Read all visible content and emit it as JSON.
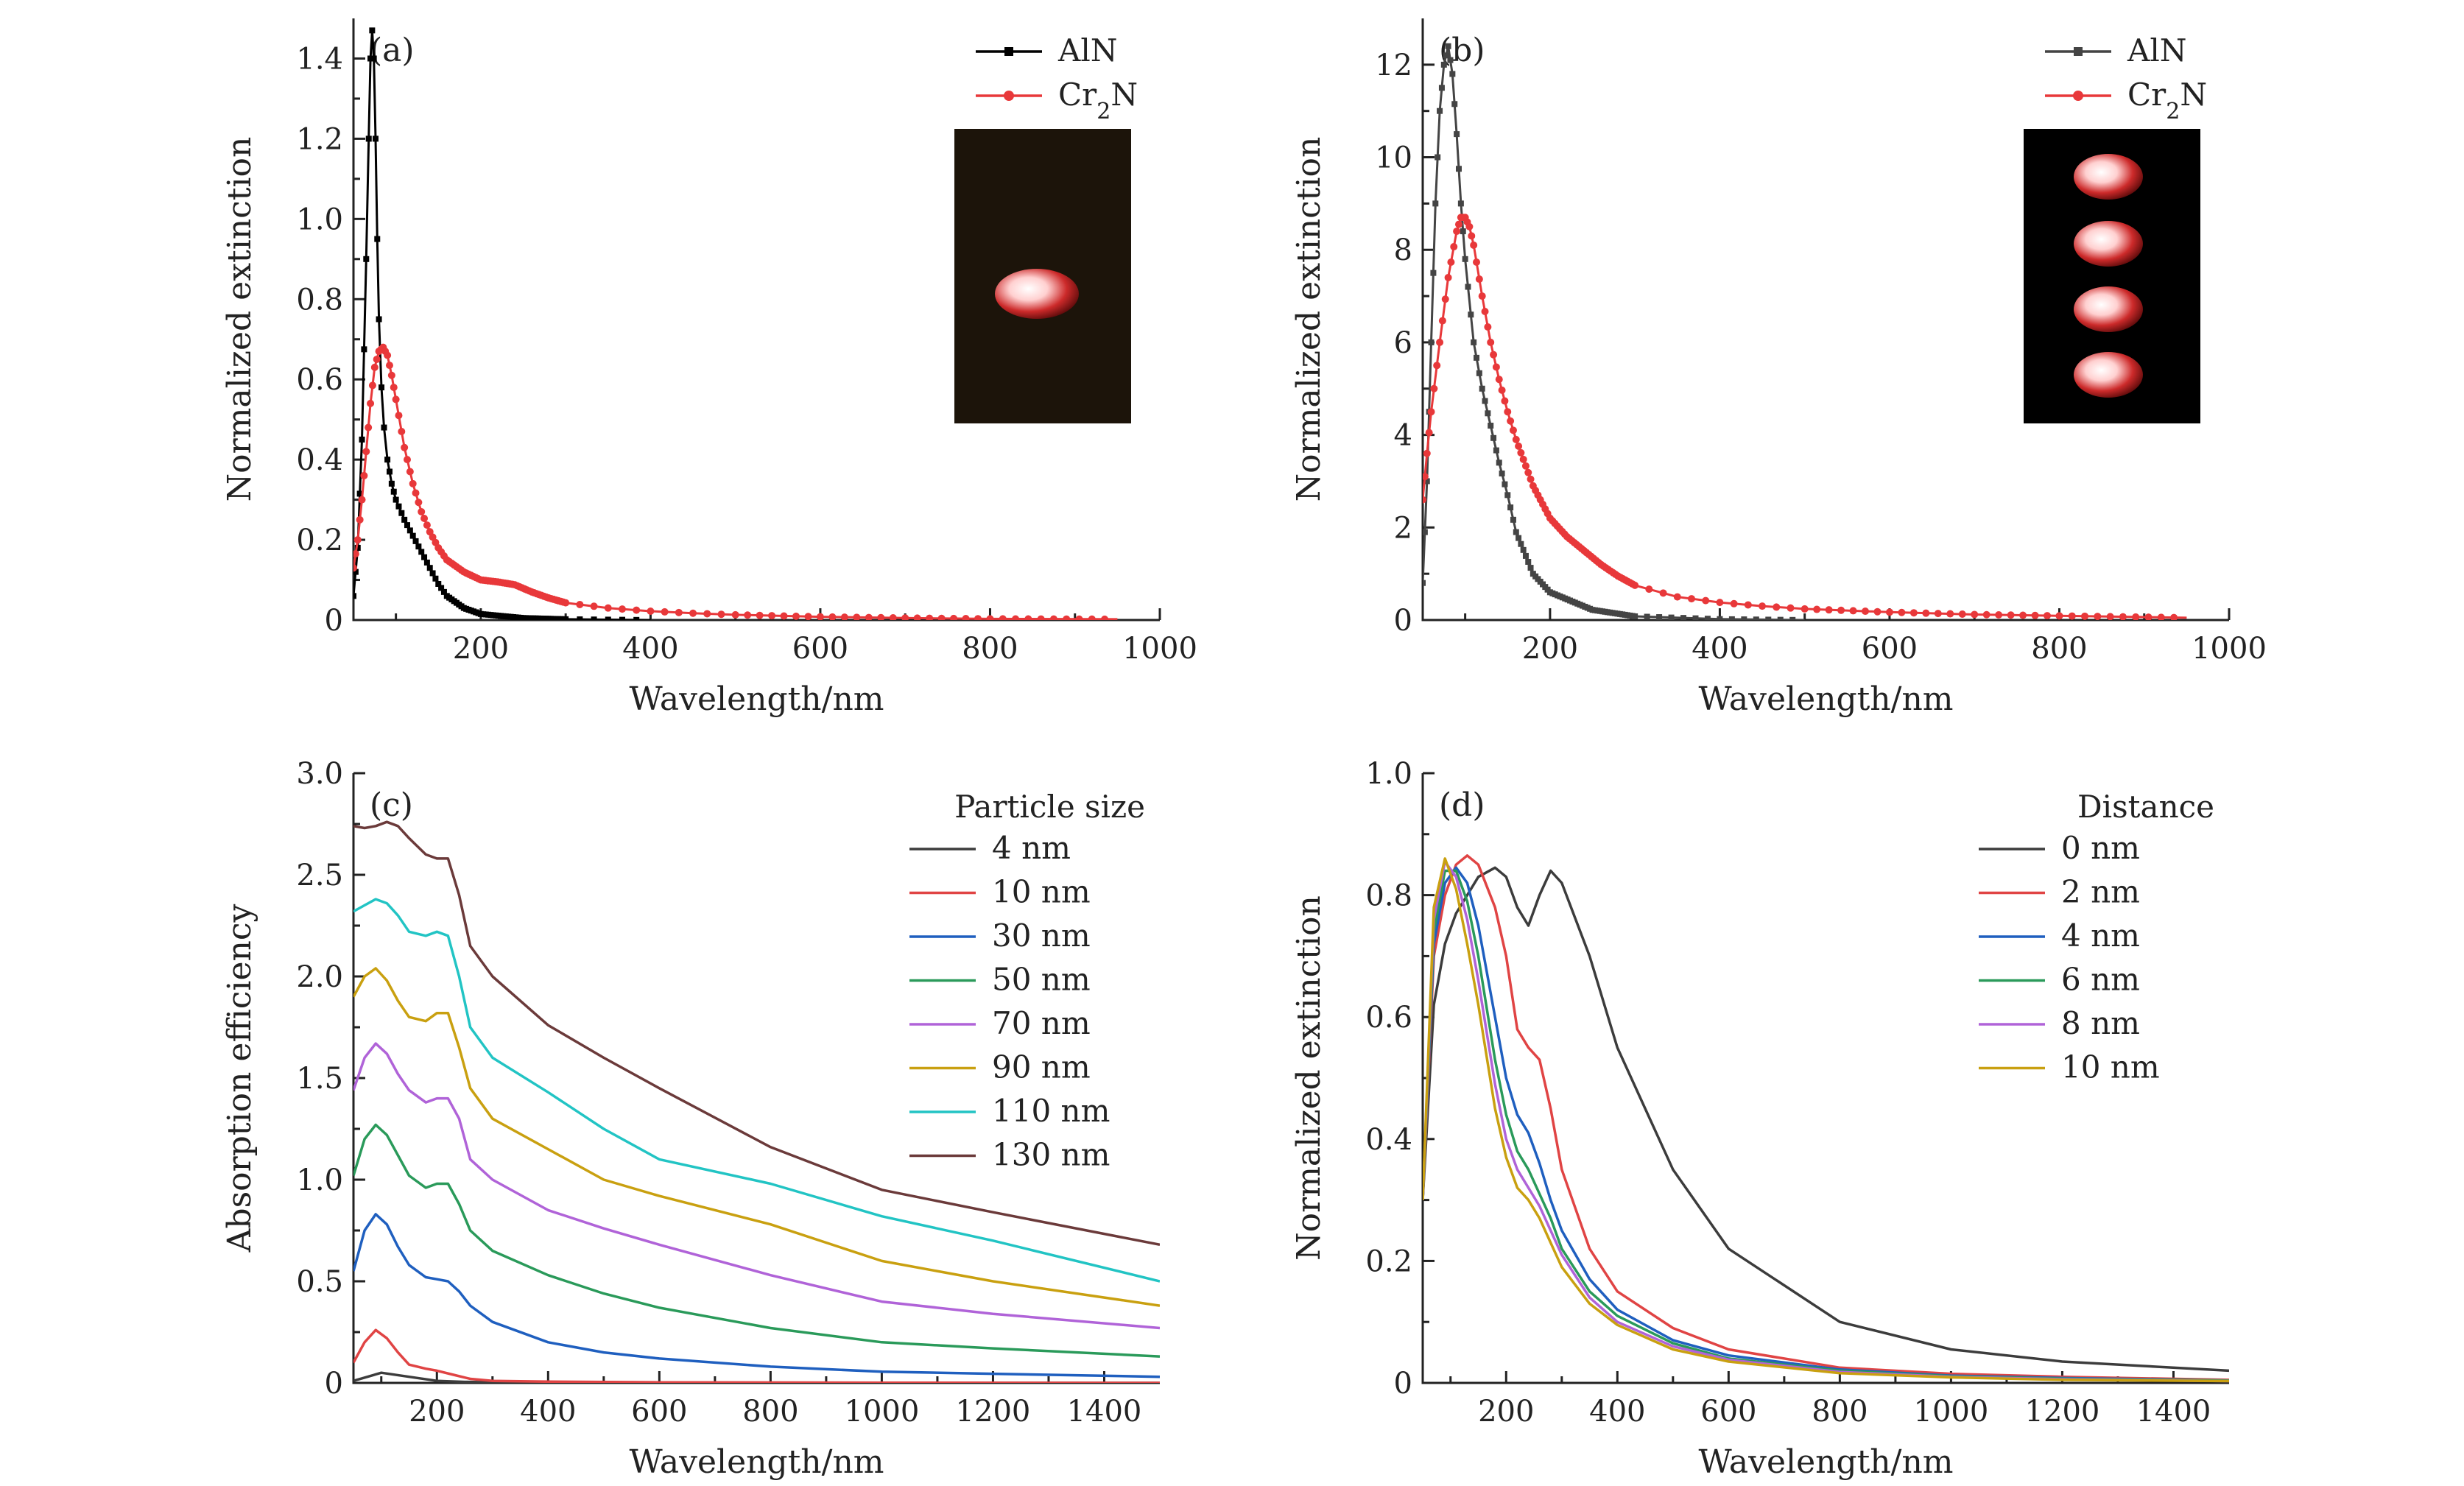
{
  "chart_data": [
    {
      "panel_label": "(a)",
      "type": "line",
      "xlabel": "Wavelength/nm",
      "ylabel": "Normalized extinction",
      "xlim": [
        50,
        1000
      ],
      "ylim": [
        0,
        1.5
      ],
      "xticks": [
        200,
        400,
        600,
        800,
        1000
      ],
      "yticks": [
        0,
        0.2,
        0.4,
        0.6,
        0.8,
        1.0,
        1.2,
        1.4
      ],
      "ytick_labels": [
        "0",
        "0.2",
        "0.4",
        "0.6",
        "0.8",
        "1.0",
        "1.2",
        "1.4"
      ],
      "legend_position": "top-right",
      "inset": "single bright particle",
      "series": [
        {
          "name": "AlN",
          "color": "#000000",
          "marker": "square",
          "x": [
            50,
            55,
            60,
            65,
            68,
            70,
            72,
            74,
            76,
            78,
            80,
            83,
            86,
            90,
            95,
            100,
            110,
            120,
            130,
            140,
            150,
            160,
            180,
            200,
            250,
            300,
            350,
            400
          ],
          "y": [
            0.06,
            0.18,
            0.45,
            0.9,
            1.2,
            1.4,
            1.47,
            1.4,
            1.2,
            0.95,
            0.75,
            0.58,
            0.48,
            0.4,
            0.34,
            0.3,
            0.25,
            0.21,
            0.17,
            0.13,
            0.09,
            0.06,
            0.03,
            0.015,
            0.005,
            0.002,
            0.001,
            0.0
          ]
        },
        {
          "name": "Cr₂N",
          "color": "#e8383a",
          "marker": "circle",
          "x": [
            50,
            55,
            60,
            65,
            70,
            75,
            80,
            85,
            90,
            95,
            100,
            110,
            120,
            130,
            140,
            150,
            160,
            180,
            200,
            220,
            240,
            260,
            280,
            300,
            350,
            400,
            450,
            500,
            600,
            700,
            800,
            950
          ],
          "y": [
            0.13,
            0.2,
            0.3,
            0.42,
            0.54,
            0.63,
            0.67,
            0.68,
            0.66,
            0.61,
            0.55,
            0.43,
            0.34,
            0.27,
            0.22,
            0.18,
            0.15,
            0.12,
            0.1,
            0.095,
            0.088,
            0.07,
            0.055,
            0.043,
            0.03,
            0.022,
            0.017,
            0.013,
            0.008,
            0.005,
            0.003,
            0.002
          ]
        }
      ]
    },
    {
      "panel_label": "(b)",
      "type": "line",
      "xlabel": "Wavelength/nm",
      "ylabel": "Normalized extinction",
      "xlim": [
        50,
        1000
      ],
      "ylim": [
        0,
        13
      ],
      "xticks": [
        200,
        400,
        600,
        800,
        1000
      ],
      "yticks": [
        0,
        2,
        4,
        6,
        8,
        10,
        12
      ],
      "ytick_labels": [
        "0",
        "2",
        "4",
        "6",
        "8",
        "10",
        "12"
      ],
      "legend_position": "top-right",
      "inset": "four bright particles in a column",
      "series": [
        {
          "name": "AlN",
          "color": "#444444",
          "marker": "square",
          "x": [
            50,
            55,
            60,
            65,
            70,
            75,
            80,
            85,
            90,
            95,
            100,
            110,
            120,
            130,
            140,
            150,
            160,
            180,
            200,
            250,
            300,
            400,
            500
          ],
          "y": [
            0.8,
            3.0,
            6.0,
            9.0,
            11.0,
            12.0,
            12.4,
            11.8,
            10.5,
            9.0,
            7.8,
            6.0,
            5.0,
            4.2,
            3.4,
            2.7,
            1.9,
            1.0,
            0.6,
            0.22,
            0.08,
            0.02,
            0.0
          ]
        },
        {
          "name": "Cr₂N",
          "color": "#e8383a",
          "marker": "circle",
          "x": [
            50,
            55,
            60,
            70,
            80,
            90,
            95,
            100,
            105,
            110,
            120,
            130,
            140,
            150,
            160,
            180,
            200,
            220,
            240,
            260,
            280,
            300,
            350,
            400,
            450,
            500,
            600,
            700,
            800,
            950
          ],
          "y": [
            2.6,
            3.6,
            4.5,
            6.0,
            7.4,
            8.4,
            8.7,
            8.7,
            8.5,
            8.1,
            7.0,
            6.0,
            5.2,
            4.5,
            3.9,
            2.9,
            2.2,
            1.8,
            1.5,
            1.2,
            0.95,
            0.75,
            0.5,
            0.38,
            0.3,
            0.24,
            0.17,
            0.12,
            0.09,
            0.05
          ]
        }
      ]
    },
    {
      "panel_label": "(c)",
      "type": "line",
      "xlabel": "Wavelength/nm",
      "ylabel": "Absorption efficiency",
      "xlim": [
        50,
        1500
      ],
      "ylim": [
        0,
        3.0
      ],
      "xticks": [
        200,
        400,
        600,
        800,
        1000,
        1200,
        1400
      ],
      "yticks": [
        0,
        0.5,
        1.0,
        1.5,
        2.0,
        2.5,
        3.0
      ],
      "ytick_labels": [
        "0",
        "0.5",
        "1.0",
        "1.5",
        "2.0",
        "2.5",
        "3.0"
      ],
      "legend_title": "Particle size",
      "legend_position": "top-right",
      "series": [
        {
          "name": "4 nm",
          "color": "#3c3c3c",
          "x": [
            50,
            100,
            150,
            200,
            250,
            300,
            400,
            600,
            1000,
            1500
          ],
          "y": [
            0.01,
            0.05,
            0.03,
            0.01,
            0.005,
            0.003,
            0.002,
            0.001,
            0.0,
            0.0
          ]
        },
        {
          "name": "10 nm",
          "color": "#e04444",
          "x": [
            50,
            70,
            90,
            110,
            130,
            150,
            180,
            200,
            230,
            260,
            300,
            400,
            600,
            1000,
            1500
          ],
          "y": [
            0.1,
            0.2,
            0.26,
            0.22,
            0.15,
            0.09,
            0.07,
            0.06,
            0.04,
            0.02,
            0.01,
            0.006,
            0.003,
            0.001,
            0.0
          ]
        },
        {
          "name": "30 nm",
          "color": "#1f5fbf",
          "x": [
            50,
            70,
            90,
            110,
            130,
            150,
            180,
            200,
            220,
            240,
            260,
            300,
            400,
            500,
            600,
            800,
            1000,
            1200,
            1500
          ],
          "y": [
            0.55,
            0.75,
            0.83,
            0.78,
            0.67,
            0.58,
            0.52,
            0.51,
            0.5,
            0.45,
            0.38,
            0.3,
            0.2,
            0.15,
            0.12,
            0.08,
            0.055,
            0.045,
            0.03
          ]
        },
        {
          "name": "50 nm",
          "color": "#2a9a5a",
          "x": [
            50,
            70,
            90,
            110,
            130,
            150,
            180,
            200,
            220,
            240,
            260,
            300,
            400,
            500,
            600,
            800,
            1000,
            1200,
            1500
          ],
          "y": [
            1.02,
            1.2,
            1.27,
            1.22,
            1.12,
            1.02,
            0.96,
            0.98,
            0.98,
            0.88,
            0.75,
            0.65,
            0.53,
            0.44,
            0.37,
            0.27,
            0.2,
            0.17,
            0.13
          ]
        },
        {
          "name": "70 nm",
          "color": "#b063d8",
          "x": [
            50,
            70,
            90,
            110,
            130,
            150,
            180,
            200,
            220,
            240,
            260,
            300,
            400,
            500,
            600,
            800,
            1000,
            1200,
            1500
          ],
          "y": [
            1.44,
            1.6,
            1.67,
            1.62,
            1.52,
            1.44,
            1.38,
            1.4,
            1.4,
            1.3,
            1.1,
            1.0,
            0.85,
            0.76,
            0.68,
            0.53,
            0.4,
            0.34,
            0.27
          ]
        },
        {
          "name": "90 nm",
          "color": "#c9a010",
          "x": [
            50,
            70,
            90,
            110,
            130,
            150,
            180,
            200,
            220,
            240,
            260,
            300,
            400,
            500,
            600,
            800,
            1000,
            1200,
            1500
          ],
          "y": [
            1.9,
            2.0,
            2.04,
            1.98,
            1.88,
            1.8,
            1.78,
            1.82,
            1.82,
            1.65,
            1.45,
            1.3,
            1.15,
            1.0,
            0.92,
            0.78,
            0.6,
            0.5,
            0.38
          ]
        },
        {
          "name": "110 nm",
          "color": "#22c4c4",
          "x": [
            50,
            70,
            90,
            110,
            130,
            150,
            180,
            200,
            220,
            240,
            260,
            300,
            400,
            500,
            600,
            800,
            1000,
            1200,
            1500
          ],
          "y": [
            2.32,
            2.35,
            2.38,
            2.36,
            2.3,
            2.22,
            2.2,
            2.22,
            2.2,
            2.0,
            1.75,
            1.6,
            1.43,
            1.25,
            1.1,
            0.98,
            0.82,
            0.7,
            0.5
          ]
        },
        {
          "name": "130 nm",
          "color": "#6b3a3a",
          "x": [
            50,
            70,
            90,
            110,
            130,
            150,
            180,
            200,
            220,
            240,
            260,
            300,
            400,
            500,
            600,
            800,
            1000,
            1200,
            1500
          ],
          "y": [
            2.74,
            2.73,
            2.74,
            2.76,
            2.74,
            2.68,
            2.6,
            2.58,
            2.58,
            2.4,
            2.15,
            2.0,
            1.76,
            1.6,
            1.45,
            1.16,
            0.95,
            0.84,
            0.68
          ]
        }
      ]
    },
    {
      "panel_label": "(d)",
      "type": "line",
      "xlabel": "Wavelength/nm",
      "ylabel": "Normalized extinction",
      "xlim": [
        50,
        1500
      ],
      "ylim": [
        0,
        1.0
      ],
      "xticks": [
        200,
        400,
        600,
        800,
        1000,
        1200,
        1400
      ],
      "yticks": [
        0,
        0.2,
        0.4,
        0.6,
        0.8,
        1.0
      ],
      "ytick_labels": [
        "0",
        "0.2",
        "0.4",
        "0.6",
        "0.8",
        "1.0"
      ],
      "legend_title": "Distance",
      "legend_position": "top-right",
      "series": [
        {
          "name": "0 nm",
          "color": "#3c3c3c",
          "x": [
            50,
            70,
            90,
            110,
            130,
            150,
            180,
            200,
            220,
            240,
            260,
            280,
            300,
            350,
            400,
            500,
            600,
            800,
            1000,
            1200,
            1500
          ],
          "y": [
            0.3,
            0.62,
            0.72,
            0.77,
            0.8,
            0.83,
            0.845,
            0.83,
            0.78,
            0.75,
            0.8,
            0.84,
            0.82,
            0.7,
            0.55,
            0.35,
            0.22,
            0.1,
            0.055,
            0.035,
            0.02
          ]
        },
        {
          "name": "2 nm",
          "color": "#e04444",
          "x": [
            50,
            70,
            90,
            110,
            130,
            150,
            180,
            200,
            220,
            240,
            260,
            280,
            300,
            350,
            400,
            500,
            600,
            800,
            1000,
            1200,
            1500
          ],
          "y": [
            0.3,
            0.7,
            0.8,
            0.85,
            0.865,
            0.85,
            0.78,
            0.7,
            0.58,
            0.55,
            0.53,
            0.45,
            0.35,
            0.22,
            0.15,
            0.09,
            0.055,
            0.025,
            0.015,
            0.01,
            0.005
          ]
        },
        {
          "name": "4 nm",
          "color": "#1f5fbf",
          "x": [
            50,
            70,
            90,
            110,
            130,
            150,
            180,
            200,
            220,
            240,
            260,
            280,
            300,
            350,
            400,
            500,
            600,
            800,
            1000,
            1200,
            1500
          ],
          "y": [
            0.3,
            0.72,
            0.82,
            0.845,
            0.82,
            0.75,
            0.6,
            0.5,
            0.44,
            0.41,
            0.36,
            0.3,
            0.25,
            0.17,
            0.12,
            0.07,
            0.045,
            0.022,
            0.012,
            0.008,
            0.004
          ]
        },
        {
          "name": "6 nm",
          "color": "#2a9a5a",
          "x": [
            50,
            70,
            90,
            110,
            130,
            150,
            180,
            200,
            220,
            240,
            260,
            280,
            300,
            350,
            400,
            500,
            600,
            800,
            1000,
            1200,
            1500
          ],
          "y": [
            0.3,
            0.74,
            0.84,
            0.84,
            0.79,
            0.7,
            0.53,
            0.44,
            0.38,
            0.35,
            0.31,
            0.27,
            0.22,
            0.15,
            0.11,
            0.065,
            0.04,
            0.02,
            0.011,
            0.007,
            0.004
          ]
        },
        {
          "name": "8 nm",
          "color": "#b063d8",
          "x": [
            50,
            70,
            90,
            110,
            130,
            150,
            180,
            200,
            220,
            240,
            260,
            280,
            300,
            350,
            400,
            500,
            600,
            800,
            1000,
            1200,
            1500
          ],
          "y": [
            0.3,
            0.76,
            0.855,
            0.83,
            0.76,
            0.66,
            0.49,
            0.4,
            0.35,
            0.32,
            0.29,
            0.25,
            0.21,
            0.14,
            0.1,
            0.06,
            0.038,
            0.018,
            0.01,
            0.006,
            0.003
          ]
        },
        {
          "name": "10 nm",
          "color": "#c9a010",
          "x": [
            50,
            70,
            90,
            110,
            130,
            150,
            180,
            200,
            220,
            240,
            260,
            280,
            300,
            350,
            400,
            500,
            600,
            800,
            1000,
            1200,
            1500
          ],
          "y": [
            0.3,
            0.78,
            0.86,
            0.81,
            0.72,
            0.62,
            0.45,
            0.37,
            0.32,
            0.3,
            0.27,
            0.23,
            0.19,
            0.13,
            0.095,
            0.055,
            0.035,
            0.016,
            0.009,
            0.005,
            0.003
          ]
        }
      ]
    }
  ]
}
